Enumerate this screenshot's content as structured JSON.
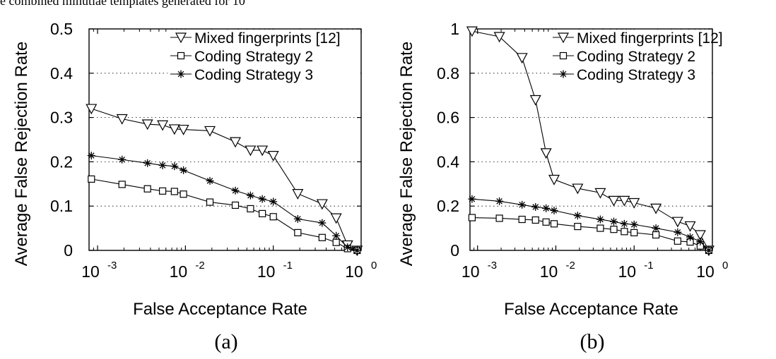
{
  "clipped_caption": "e combined minutiae templates generated for 10",
  "chart_data": [
    {
      "type": "line",
      "panel_label": "(a)",
      "xlabel": "False Acceptance Rate",
      "ylabel": "Average False Rejection Rate",
      "xscale": "log",
      "xlim": [
        0.0008,
        1
      ],
      "ylim": [
        0,
        0.5
      ],
      "xticks": [
        0.001,
        0.01,
        0.1,
        1
      ],
      "xtick_labels": [
        [
          "10",
          "-3"
        ],
        [
          "10",
          "-2"
        ],
        [
          "10",
          "-1"
        ],
        [
          "10",
          "0"
        ]
      ],
      "yticks": [
        0,
        0.1,
        0.2,
        0.3,
        0.4,
        0.5
      ],
      "ytick_labels": [
        "0",
        "0.1",
        "0.2",
        "0.3",
        "0.4",
        "0.5"
      ],
      "grid": "horizontal-dotted",
      "legend_position": "top-right",
      "series": [
        {
          "name": "Mixed fingerprints [12]",
          "marker": "triangle-down",
          "x": [
            0.00085,
            0.0019,
            0.0037,
            0.0055,
            0.0075,
            0.0095,
            0.019,
            0.037,
            0.055,
            0.075,
            0.1,
            0.19,
            0.36,
            0.52,
            0.7,
            0.9
          ],
          "y": [
            0.32,
            0.297,
            0.285,
            0.283,
            0.274,
            0.273,
            0.27,
            0.245,
            0.226,
            0.226,
            0.214,
            0.128,
            0.105,
            0.073,
            0.012,
            0.0
          ]
        },
        {
          "name": "Coding Strategy 2",
          "marker": "square",
          "x": [
            0.00085,
            0.0019,
            0.0037,
            0.0055,
            0.0075,
            0.0095,
            0.019,
            0.037,
            0.055,
            0.075,
            0.1,
            0.19,
            0.36,
            0.52,
            0.7,
            0.9
          ],
          "y": [
            0.161,
            0.149,
            0.139,
            0.134,
            0.133,
            0.127,
            0.109,
            0.102,
            0.094,
            0.083,
            0.076,
            0.04,
            0.029,
            0.018,
            0.004,
            0.0
          ]
        },
        {
          "name": "Coding Strategy 3",
          "marker": "star",
          "x": [
            0.00085,
            0.0019,
            0.0037,
            0.0055,
            0.0075,
            0.0095,
            0.019,
            0.037,
            0.055,
            0.075,
            0.1,
            0.19,
            0.36,
            0.52,
            0.7,
            0.9
          ],
          "y": [
            0.214,
            0.205,
            0.197,
            0.192,
            0.19,
            0.181,
            0.157,
            0.135,
            0.124,
            0.116,
            0.11,
            0.071,
            0.062,
            0.033,
            0.007,
            0.0
          ]
        }
      ]
    },
    {
      "type": "line",
      "panel_label": "(b)",
      "xlabel": "False Acceptance Rate",
      "ylabel": "Average False Rejection Rate",
      "xscale": "log",
      "xlim": [
        0.0008,
        1
      ],
      "ylim": [
        0,
        1
      ],
      "xticks": [
        0.001,
        0.01,
        0.1,
        1
      ],
      "xtick_labels": [
        [
          "10",
          "-3"
        ],
        [
          "10",
          "-2"
        ],
        [
          "10",
          "-1"
        ],
        [
          "10",
          "0"
        ]
      ],
      "yticks": [
        0,
        0.2,
        0.4,
        0.6,
        0.8,
        1
      ],
      "ytick_labels": [
        "0",
        "0.2",
        "0.4",
        "0.6",
        "0.8",
        "1"
      ],
      "grid": "horizontal-dotted",
      "legend_position": "top-right",
      "series": [
        {
          "name": "Mixed fingerprints [12]",
          "marker": "triangle-down",
          "x": [
            0.00085,
            0.0019,
            0.0037,
            0.0055,
            0.0075,
            0.0095,
            0.019,
            0.037,
            0.055,
            0.075,
            0.1,
            0.19,
            0.36,
            0.52,
            0.7,
            0.9
          ],
          "y": [
            0.99,
            0.965,
            0.87,
            0.68,
            0.44,
            0.32,
            0.28,
            0.26,
            0.225,
            0.225,
            0.215,
            0.19,
            0.13,
            0.11,
            0.07,
            0.0
          ]
        },
        {
          "name": "Coding Strategy 2",
          "marker": "square",
          "x": [
            0.00085,
            0.0019,
            0.0037,
            0.0055,
            0.0075,
            0.0095,
            0.019,
            0.037,
            0.055,
            0.075,
            0.1,
            0.19,
            0.36,
            0.52,
            0.7,
            0.9
          ],
          "y": [
            0.148,
            0.145,
            0.14,
            0.137,
            0.128,
            0.12,
            0.108,
            0.1,
            0.095,
            0.085,
            0.08,
            0.07,
            0.042,
            0.038,
            0.02,
            0.0
          ]
        },
        {
          "name": "Coding Strategy 3",
          "marker": "star",
          "x": [
            0.00085,
            0.0019,
            0.0037,
            0.0055,
            0.0075,
            0.0095,
            0.019,
            0.037,
            0.055,
            0.075,
            0.1,
            0.19,
            0.36,
            0.52,
            0.7,
            0.9
          ],
          "y": [
            0.232,
            0.222,
            0.206,
            0.196,
            0.19,
            0.18,
            0.157,
            0.14,
            0.13,
            0.12,
            0.117,
            0.1,
            0.082,
            0.06,
            0.04,
            0.0
          ]
        }
      ]
    }
  ]
}
